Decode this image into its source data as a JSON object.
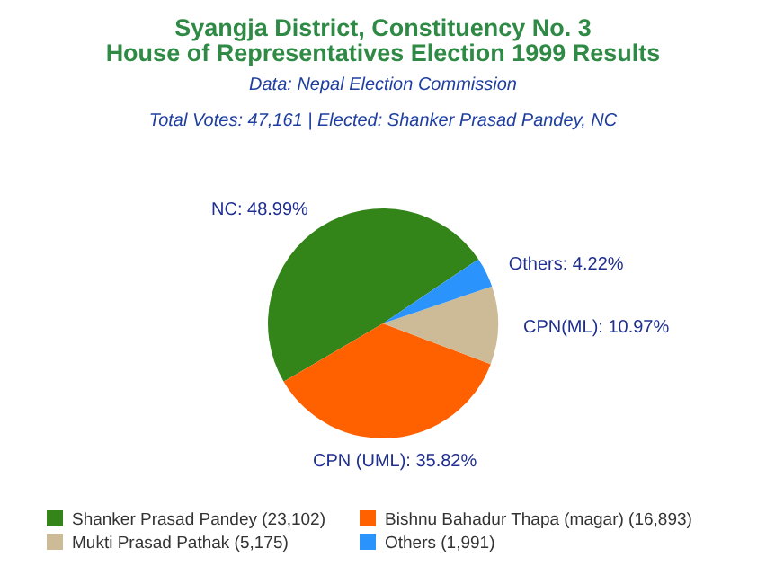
{
  "chart_data": {
    "type": "pie",
    "title": "Syangja District, Constituency No. 3\nHouse of Representatives Election 1999 Results",
    "subtitle": "Data: Nepal Election Commission",
    "annotations": [
      "Total Votes: 47,161 | Elected: Shanker Prasad Pandey, NC"
    ],
    "categories": [
      "Shanker Prasad Pandey (23,102)",
      "Bishnu Bahadur Thapa (magar) (16,893)",
      "Mukti Prasad Pathak (5,175)",
      "Others (1,991)"
    ],
    "values": [
      48.99,
      35.82,
      10.97,
      4.22
    ],
    "value_labels": [
      "NC: 48.99%",
      "CPN (UML): 35.82%",
      "CPN(ML): 10.97%",
      "Others: 4.22%"
    ],
    "colors": [
      "#338419",
      "#ff6000",
      "#cdbb97",
      "#2a93fc"
    ],
    "legend": "bottom"
  }
}
